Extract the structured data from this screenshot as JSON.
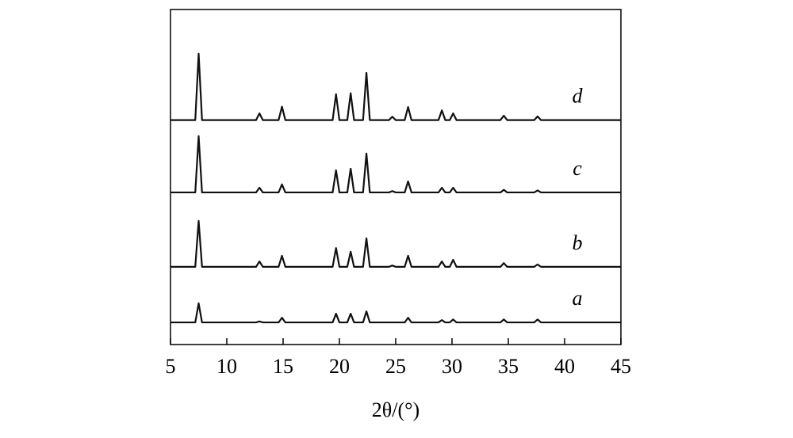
{
  "chart_data": {
    "type": "line",
    "xlabel": "2θ/(°)",
    "xlim": [
      5,
      45
    ],
    "xticks": [
      5,
      10,
      15,
      20,
      25,
      30,
      35,
      40,
      45
    ],
    "ylim": [
      0,
      100
    ],
    "x": [
      5,
      7.2,
      7.5,
      7.8,
      12.6,
      12.9,
      13.2,
      14.6,
      14.9,
      15.2,
      19.4,
      19.7,
      20.0,
      20.7,
      21.0,
      21.3,
      22.1,
      22.4,
      22.7,
      24.4,
      24.7,
      25.0,
      25.8,
      26.1,
      26.4,
      28.8,
      29.1,
      29.4,
      29.8,
      30.1,
      30.4,
      34.3,
      34.6,
      34.9,
      37.3,
      37.6,
      37.9,
      45
    ],
    "series": [
      {
        "name": "d",
        "color": "#111111",
        "values": [
          67,
          67,
          86.8,
          67,
          67,
          69,
          67,
          67,
          71,
          67,
          67,
          74.7,
          67,
          67,
          75,
          67,
          67,
          81.1,
          67,
          67,
          68,
          67,
          67,
          70.9,
          67,
          67,
          69.9,
          67,
          67,
          69,
          67,
          67,
          68.3,
          67,
          67,
          68.1,
          67,
          67
        ]
      },
      {
        "name": "c",
        "color": "#111111",
        "values": [
          45.4,
          45.4,
          62.2,
          45.4,
          45.4,
          46.8,
          45.4,
          45.4,
          47.8,
          45.4,
          45.4,
          52,
          45.4,
          45.4,
          52.5,
          45.4,
          45.4,
          57,
          45.4,
          45.4,
          45.8,
          45.4,
          45.4,
          48.7,
          45.4,
          45.4,
          46.8,
          45.4,
          45.4,
          46.8,
          45.4,
          45.4,
          46.2,
          45.4,
          45.4,
          46,
          45.4,
          45.4
        ]
      },
      {
        "name": "b",
        "color": "#111111",
        "values": [
          23.2,
          23.2,
          36.9,
          23.2,
          23.2,
          24.8,
          23.2,
          23.2,
          26.5,
          23.2,
          23.2,
          28.8,
          23.2,
          23.2,
          27.7,
          23.2,
          23.2,
          31.7,
          23.2,
          23.2,
          23.6,
          23.2,
          23.2,
          26.5,
          23.2,
          23.2,
          24.8,
          23.2,
          23.2,
          25.3,
          23.2,
          23.2,
          24.3,
          23.2,
          23.2,
          23.9,
          23.2,
          23.2
        ]
      },
      {
        "name": "a",
        "color": "#111111",
        "values": [
          6.6,
          6.6,
          12.3,
          6.6,
          6.6,
          6.9,
          6.6,
          6.6,
          8,
          6.6,
          6.6,
          9.2,
          6.6,
          6.6,
          9.2,
          6.6,
          6.6,
          9.9,
          6.6,
          6.6,
          6.6,
          6.6,
          6.6,
          8,
          6.6,
          6.6,
          7.3,
          6.6,
          6.6,
          7.5,
          6.6,
          6.6,
          7.5,
          6.6,
          6.6,
          7.5,
          6.6,
          6.6
        ]
      }
    ]
  }
}
